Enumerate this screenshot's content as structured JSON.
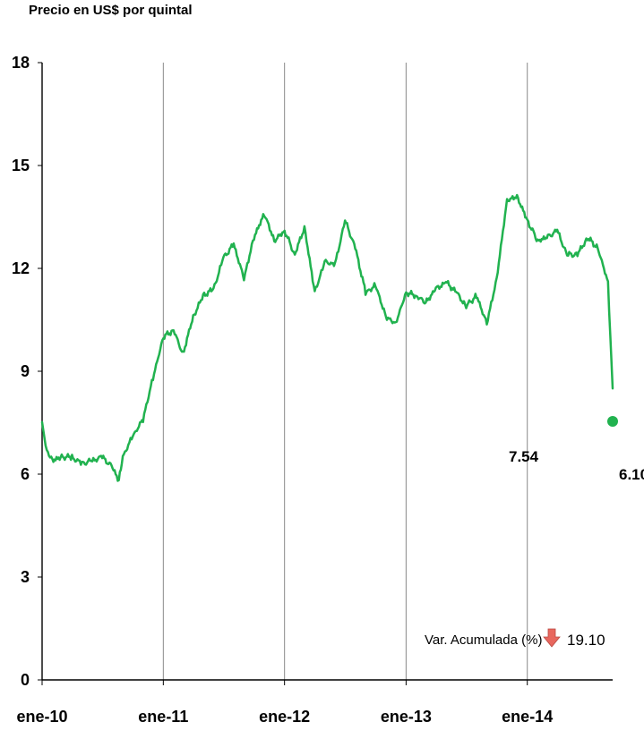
{
  "chart_data": {
    "type": "line",
    "ylabel": "Precio en US$ por quintal",
    "ylim": [
      0,
      18
    ],
    "yticks": [
      0,
      3,
      6,
      9,
      12,
      15,
      18
    ],
    "xlim": [
      "2010-01-01",
      "2014-09-15"
    ],
    "xticks": [
      {
        "date": "2010-01-01",
        "label": "ene-10"
      },
      {
        "date": "2011-01-01",
        "label": "ene-11"
      },
      {
        "date": "2012-01-01",
        "label": "ene-12"
      },
      {
        "date": "2013-01-01",
        "label": "ene-13"
      },
      {
        "date": "2014-01-01",
        "label": "ene-14"
      }
    ],
    "grid": "vertical",
    "line_color": "#21b24f",
    "series": [
      {
        "values": [
          [
            "2010-01-01",
            7.5
          ],
          [
            "2010-01-15",
            6.7
          ],
          [
            "2010-02-01",
            6.4
          ],
          [
            "2010-03-01",
            6.5
          ],
          [
            "2010-04-01",
            6.5
          ],
          [
            "2010-05-01",
            6.3
          ],
          [
            "2010-06-01",
            6.4
          ],
          [
            "2010-07-01",
            6.5
          ],
          [
            "2010-08-01",
            6.2
          ],
          [
            "2010-08-20",
            5.8
          ],
          [
            "2010-09-01",
            6.5
          ],
          [
            "2010-10-01",
            7.1
          ],
          [
            "2010-11-01",
            7.6
          ],
          [
            "2010-12-01",
            8.8
          ],
          [
            "2011-01-01",
            10.0
          ],
          [
            "2011-02-01",
            10.2
          ],
          [
            "2011-03-01",
            9.5
          ],
          [
            "2011-04-01",
            10.6
          ],
          [
            "2011-05-01",
            11.2
          ],
          [
            "2011-06-01",
            11.4
          ],
          [
            "2011-07-01",
            12.3
          ],
          [
            "2011-08-01",
            12.7
          ],
          [
            "2011-09-01",
            11.7
          ],
          [
            "2011-10-01",
            12.9
          ],
          [
            "2011-11-01",
            13.6
          ],
          [
            "2011-12-01",
            12.8
          ],
          [
            "2012-01-01",
            13.1
          ],
          [
            "2012-02-01",
            12.4
          ],
          [
            "2012-03-01",
            13.2
          ],
          [
            "2012-04-01",
            11.3
          ],
          [
            "2012-05-01",
            12.2
          ],
          [
            "2012-06-01",
            12.1
          ],
          [
            "2012-07-01",
            13.4
          ],
          [
            "2012-08-01",
            12.6
          ],
          [
            "2012-09-01",
            11.3
          ],
          [
            "2012-10-01",
            11.5
          ],
          [
            "2012-11-01",
            10.6
          ],
          [
            "2012-12-01",
            10.4
          ],
          [
            "2013-01-01",
            11.3
          ],
          [
            "2013-02-01",
            11.2
          ],
          [
            "2013-03-01",
            11.0
          ],
          [
            "2013-04-01",
            11.4
          ],
          [
            "2013-05-01",
            11.6
          ],
          [
            "2013-06-01",
            11.3
          ],
          [
            "2013-07-01",
            10.9
          ],
          [
            "2013-08-01",
            11.2
          ],
          [
            "2013-09-01",
            10.4
          ],
          [
            "2013-10-01",
            11.7
          ],
          [
            "2013-11-01",
            14.0
          ],
          [
            "2013-12-01",
            14.1
          ],
          [
            "2014-01-01",
            13.4
          ],
          [
            "2014-02-01",
            12.8
          ],
          [
            "2014-03-01",
            12.9
          ],
          [
            "2014-04-01",
            13.1
          ],
          [
            "2014-05-01",
            12.4
          ],
          [
            "2014-06-01",
            12.4
          ],
          [
            "2014-07-01",
            12.9
          ],
          [
            "2014-08-01",
            12.6
          ],
          [
            "2014-09-01",
            11.6
          ],
          [
            "2014-09-15",
            8.5
          ]
        ]
      }
    ],
    "annotations": [
      {
        "label": "7.54",
        "value": 7.54
      },
      {
        "label": "6.10",
        "value": 6.1
      }
    ],
    "var_label": "Var. Acumulada (%)",
    "var_value": "19.10",
    "var_arrow_color": "#e8675e"
  }
}
